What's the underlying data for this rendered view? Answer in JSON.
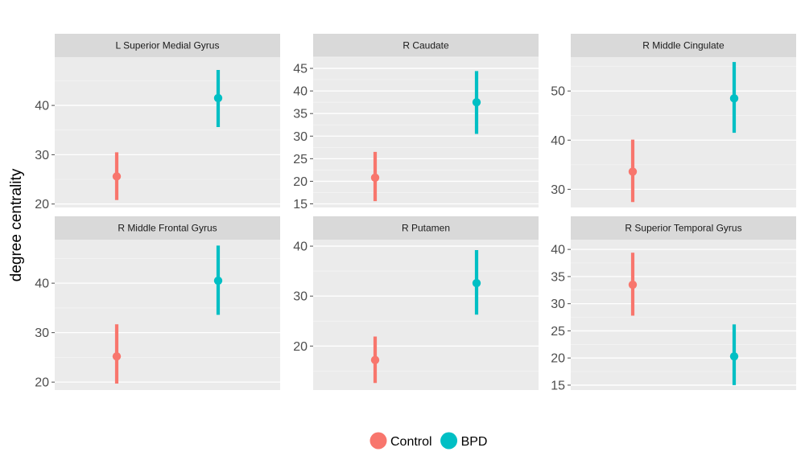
{
  "chart_data": {
    "type": "scatter",
    "ylabel": "degree centrality",
    "xlabel": "",
    "legend": {
      "position": "bottom",
      "entries": [
        {
          "name": "Control",
          "color": "#F8766D"
        },
        {
          "name": "BPD",
          "color": "#00BFC4"
        }
      ]
    },
    "grid": true,
    "panels": [
      {
        "title": "L Superior Medial Gyrus",
        "ylim": [
          19.3,
          49.8
        ],
        "yticks": [
          20,
          30,
          40
        ],
        "points": [
          {
            "group": "Control",
            "y": 25.6,
            "ymin": 20.8,
            "ymax": 30.5
          },
          {
            "group": "BPD",
            "y": 41.5,
            "ymin": 35.6,
            "ymax": 47.2
          }
        ]
      },
      {
        "title": "R Caudate",
        "ylim": [
          14.2,
          47.5
        ],
        "yticks": [
          15,
          20,
          25,
          30,
          35,
          40,
          45
        ],
        "points": [
          {
            "group": "Control",
            "y": 20.8,
            "ymin": 15.6,
            "ymax": 26.5
          },
          {
            "group": "BPD",
            "y": 37.5,
            "ymin": 30.5,
            "ymax": 44.4
          }
        ]
      },
      {
        "title": "R Middle Cingulate",
        "ylim": [
          26.3,
          56.9
        ],
        "yticks": [
          30,
          40,
          50
        ],
        "points": [
          {
            "group": "Control",
            "y": 33.6,
            "ymin": 27.4,
            "ymax": 40.1
          },
          {
            "group": "BPD",
            "y": 48.5,
            "ymin": 41.5,
            "ymax": 55.9
          }
        ]
      },
      {
        "title": "R Middle Frontal Gyrus",
        "ylim": [
          18.4,
          48.8
        ],
        "yticks": [
          20,
          30,
          40
        ],
        "points": [
          {
            "group": "Control",
            "y": 25.2,
            "ymin": 19.7,
            "ymax": 31.7
          },
          {
            "group": "BPD",
            "y": 40.5,
            "ymin": 33.6,
            "ymax": 47.6
          }
        ]
      },
      {
        "title": "R Putamen",
        "ylim": [
          11.2,
          41.3
        ],
        "yticks": [
          20,
          30,
          40
        ],
        "points": [
          {
            "group": "Control",
            "y": 17.2,
            "ymin": 12.6,
            "ymax": 21.9
          },
          {
            "group": "BPD",
            "y": 32.6,
            "ymin": 26.3,
            "ymax": 39.2
          }
        ]
      },
      {
        "title": "R Superior Temporal Gyrus",
        "ylim": [
          14.1,
          41.8
        ],
        "yticks": [
          15,
          20,
          25,
          30,
          35,
          40
        ],
        "points": [
          {
            "group": "Control",
            "y": 33.5,
            "ymin": 27.8,
            "ymax": 39.4
          },
          {
            "group": "BPD",
            "y": 20.3,
            "ymin": 15.0,
            "ymax": 26.2
          }
        ]
      }
    ]
  }
}
